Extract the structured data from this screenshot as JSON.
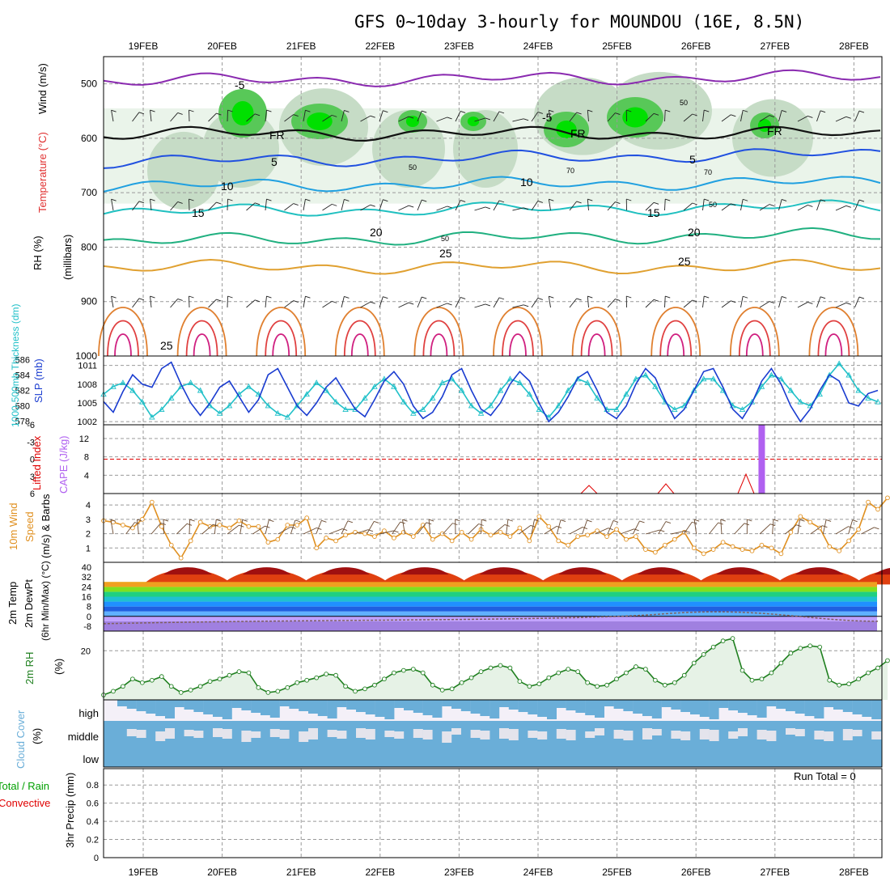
{
  "title": "GFS 0~10day 3-hourly for MOUNDOU (16E, 8.5N)",
  "date_labels": [
    "19FEB",
    "20FEB",
    "21FEB",
    "22FEB",
    "23FEB",
    "24FEB",
    "25FEB",
    "26FEB",
    "27FEB",
    "28FEB"
  ],
  "colors": {
    "rh_green": "#00e000",
    "slp": "#1a3cd0",
    "thickness": "#20c0c8",
    "lifted_index": "#e00000",
    "cape": "#b060f0",
    "wind_speed": "#e09020",
    "rh2m": "#208020",
    "cloud": "#6aaed8",
    "precip_total": "#00a000",
    "precip_conv": "#e00000"
  },
  "panels": {
    "upper": {
      "ylabels": [
        "Wind (m/s)",
        "Temperature (°C)",
        "RH (%)",
        "(millibars)"
      ],
      "pressure_ticks": [
        "500",
        "600",
        "700",
        "800",
        "900",
        "1000"
      ],
      "contour_labels": [
        "-5",
        "-5",
        "FR",
        "FR",
        "FR",
        "5",
        "5",
        "10",
        "10",
        "15",
        "15",
        "20",
        "20",
        "25",
        "25",
        "25",
        "50",
        "50",
        "50",
        "50",
        "70",
        "70"
      ]
    },
    "slp": {
      "ylabels": [
        "1000-500mb Thickness (dm)",
        "SLP (mb)"
      ],
      "thickness_ticks": [
        "586",
        "584",
        "582",
        "580",
        "578"
      ],
      "slp_ticks": [
        "1011",
        "1008",
        "1005",
        "1002"
      ]
    },
    "cape": {
      "ylabels": [
        "Lifted Index",
        "CAPE (J/kg)"
      ],
      "li_ticks": [
        "-6",
        "-3",
        "0",
        "3",
        "6"
      ],
      "cape_ticks": [
        "12",
        "8",
        "4"
      ]
    },
    "wind10": {
      "ylabels": [
        "10m Wind",
        "Speed",
        "(m/s) & Barbs"
      ],
      "ticks": [
        "4",
        "3",
        "2",
        "1"
      ]
    },
    "temp2m": {
      "ylabels": [
        "2m Temp",
        "2m DewPt",
        "(6hr Min/Max) (°C)"
      ],
      "ticks": [
        "40",
        "32",
        "24",
        "16",
        "8",
        "0",
        "-8"
      ]
    },
    "rh2m": {
      "ylabels": [
        "2m RH",
        "(%)"
      ],
      "ticks": [
        "20"
      ]
    },
    "cloud": {
      "ylabels": [
        "Cloud Cover",
        "(%)"
      ],
      "levels": [
        "high",
        "middle",
        "low"
      ]
    },
    "precip": {
      "ylabels": [
        "Total / Rain",
        "Convective",
        "3hr Precip (mm)"
      ],
      "ticks": [
        "0.8",
        "0.6",
        "0.4",
        "0.2",
        "0"
      ],
      "run_total": "Run Total = 0"
    }
  },
  "chart_data": [
    {
      "type": "line",
      "name": "SLP",
      "ylim": [
        1001.5,
        1012.5
      ],
      "values": [
        1005.2,
        1003.5,
        1006.8,
        1009.5,
        1008.0,
        1007.5,
        1010.5,
        1011.5,
        1008.0,
        1005.0,
        1003.0,
        1005.0,
        1007.5,
        1008.5,
        1006.0,
        1003.5,
        1005.5,
        1009.5,
        1010.5,
        1007.5,
        1004.5,
        1003.0,
        1005.0,
        1007.5,
        1009.0,
        1006.5,
        1004.0,
        1002.8,
        1005.5,
        1008.5,
        1010.0,
        1008.0,
        1004.5,
        1002.5,
        1003.5,
        1006.0,
        1009.5,
        1010.5,
        1007.0,
        1004.0,
        1003.0,
        1005.0,
        1008.0,
        1010.0,
        1008.5,
        1005.0,
        1002.0,
        1003.5,
        1006.0,
        1009.0,
        1010.0,
        1007.0,
        1003.5,
        1002.5,
        1004.5,
        1008.0,
        1010.5,
        1009.0,
        1005.5,
        1002.5,
        1004.0,
        1007.0,
        1010.0,
        1010.5,
        1007.5,
        1004.0,
        1002.5,
        1005.0,
        1008.5,
        1010.5,
        1008.0,
        1004.5,
        1002.0,
        1004.0,
        1007.0,
        1009.5,
        1008.5,
        1005.0,
        1004.5,
        1006.5,
        1007.0
      ]
    },
    {
      "type": "line",
      "name": "Thickness",
      "ylim": [
        577.5,
        586.5
      ],
      "values": [
        581.5,
        582.5,
        583.0,
        582.0,
        580.5,
        578.5,
        579.5,
        581.0,
        582.5,
        583.0,
        582.0,
        580.0,
        579.0,
        580.0,
        581.5,
        582.5,
        581.5,
        580.0,
        579.0,
        578.5,
        580.0,
        581.5,
        583.0,
        582.0,
        580.5,
        579.5,
        579.5,
        581.0,
        582.5,
        583.5,
        582.5,
        580.5,
        579.0,
        579.5,
        581.0,
        583.0,
        583.5,
        582.0,
        580.0,
        579.0,
        580.0,
        582.0,
        583.5,
        583.0,
        581.5,
        579.5,
        578.5,
        580.0,
        582.0,
        583.5,
        583.0,
        581.0,
        579.5,
        579.5,
        581.5,
        583.5,
        584.0,
        582.5,
        580.5,
        579.5,
        580.0,
        582.0,
        583.5,
        583.5,
        582.0,
        580.0,
        579.5,
        580.5,
        582.5,
        584.0,
        583.5,
        582.0,
        580.5,
        580.0,
        581.5,
        584.0,
        585.5,
        584.0,
        582.0,
        581.0,
        580.5
      ]
    },
    {
      "type": "line",
      "name": "10m Wind Speed",
      "ylim": [
        0,
        4.8
      ],
      "values": [
        2.9,
        2.8,
        2.6,
        2.4,
        3.0,
        4.2,
        2.5,
        1.2,
        0.3,
        1.5,
        2.8,
        2.5,
        2.6,
        2.4,
        2.9,
        2.5,
        2.5,
        1.4,
        1.6,
        2.6,
        2.6,
        3.1,
        1.0,
        1.7,
        1.5,
        1.9,
        2.1,
        2.0,
        1.8,
        2.2,
        1.7,
        2.1,
        1.8,
        2.6,
        1.6,
        2.0,
        1.5,
        2.1,
        1.6,
        2.3,
        1.9,
        2.1,
        1.8,
        2.4,
        1.5,
        3.2,
        2.5,
        1.5,
        1.2,
        1.8,
        1.9,
        2.2,
        1.8,
        2.3,
        1.6,
        1.8,
        0.9,
        0.7,
        1.2,
        1.6,
        2.1,
        1.0,
        0.6,
        0.9,
        1.4,
        1.1,
        0.9,
        0.8,
        1.2,
        1.0,
        0.6,
        2.1,
        3.2,
        2.8,
        2.4,
        1.1,
        0.8,
        1.5,
        2.3,
        4.2,
        3.7,
        4.5
      ]
    },
    {
      "type": "line",
      "name": "2m RH",
      "ylim": [
        0,
        28
      ],
      "values": [
        2.0,
        3.5,
        5.5,
        8.5,
        7.0,
        8.0,
        9.5,
        5.5,
        3.0,
        4.0,
        5.5,
        7.5,
        8.5,
        10.0,
        11.5,
        11.0,
        5.0,
        3.0,
        3.5,
        5.0,
        7.0,
        8.0,
        9.0,
        10.5,
        10.0,
        5.5,
        3.5,
        4.5,
        6.0,
        8.5,
        11.0,
        12.0,
        12.5,
        11.0,
        6.0,
        4.0,
        4.5,
        7.0,
        9.0,
        11.5,
        13.0,
        14.0,
        13.0,
        7.5,
        5.5,
        6.5,
        9.0,
        11.0,
        12.5,
        11.5,
        7.0,
        5.5,
        6.0,
        8.5,
        11.0,
        13.5,
        12.5,
        8.0,
        6.0,
        7.0,
        10.0,
        15.0,
        18.5,
        21.5,
        24.0,
        25.0,
        12.0,
        8.0,
        8.5,
        11.0,
        15.0,
        19.0,
        21.0,
        22.0,
        21.5,
        8.0,
        6.0,
        6.5,
        8.5,
        11.0,
        13.0,
        16.0
      ]
    },
    {
      "type": "bar",
      "name": "CAPE",
      "ylim": [
        0,
        15
      ],
      "values": [
        0,
        0,
        0,
        0,
        0,
        0,
        0,
        0,
        0,
        0,
        0,
        0,
        0,
        0,
        0,
        0,
        0,
        0,
        0,
        0,
        0,
        0,
        0,
        0,
        0,
        0,
        0,
        0,
        0,
        0,
        0,
        0,
        0,
        0,
        0,
        0,
        0,
        0,
        0,
        0,
        0,
        0,
        0,
        0,
        0,
        0,
        0,
        0,
        0,
        0,
        0,
        0,
        0,
        0,
        0,
        0,
        0,
        0,
        0,
        0,
        0,
        0,
        0,
        0,
        0,
        0,
        0,
        0,
        15,
        0,
        0,
        0,
        0,
        0,
        0,
        0,
        0,
        0,
        0,
        0,
        0
      ]
    }
  ]
}
